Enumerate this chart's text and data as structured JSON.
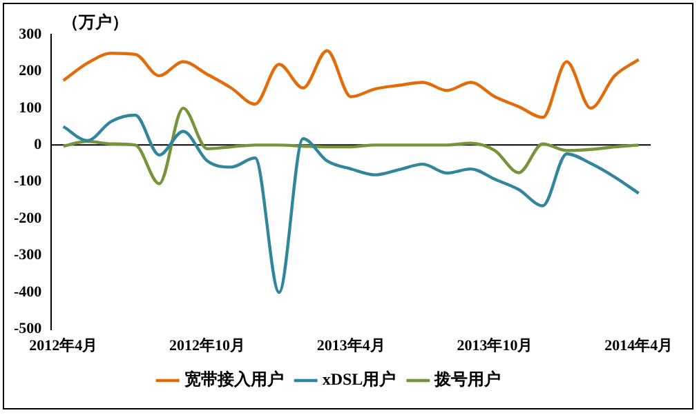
{
  "chart_data": {
    "type": "line",
    "ylabel": "（万户）",
    "categories": [
      "2012年4月",
      null,
      null,
      null,
      null,
      null,
      "2012年10月",
      null,
      null,
      null,
      null,
      null,
      "2013年4月",
      null,
      null,
      null,
      null,
      null,
      "2013年10月",
      null,
      null,
      null,
      null,
      null,
      "2014年4月"
    ],
    "series": [
      {
        "name": "宽带接入用户",
        "color": "#e36c0a",
        "values": [
          175,
          222,
          249,
          246,
          188,
          226,
          192,
          155,
          111,
          219,
          155,
          256,
          131,
          152,
          162,
          170,
          148,
          170,
          131,
          104,
          75,
          226,
          100,
          188,
          232
        ]
      },
      {
        "name": "xDSL用户",
        "color": "#31859c",
        "values": [
          50,
          12,
          64,
          81,
          -27,
          37,
          -43,
          -60,
          -35,
          -400,
          17,
          -43,
          -65,
          -81,
          -67,
          -52,
          -76,
          -65,
          -93,
          -121,
          -165,
          -24,
          -50,
          -87,
          -131
        ]
      },
      {
        "name": "拨号用户",
        "color": "#77933c",
        "values": [
          -3,
          10,
          3,
          0,
          -105,
          100,
          -10,
          -5,
          0,
          0,
          -3,
          -5,
          -5,
          0,
          0,
          0,
          0,
          5,
          -15,
          -75,
          3,
          -15,
          -12,
          -5,
          0
        ]
      }
    ],
    "ref_lines": [
      {
        "axis": "y",
        "value": 0,
        "color": "#000000"
      }
    ],
    "ylim": [
      -500,
      300
    ],
    "yticks": [
      -500,
      -400,
      -300,
      -200,
      -100,
      0,
      100,
      200,
      300
    ],
    "grid": false,
    "legend": "bottom",
    "marker": "none",
    "line_style": "solid"
  }
}
